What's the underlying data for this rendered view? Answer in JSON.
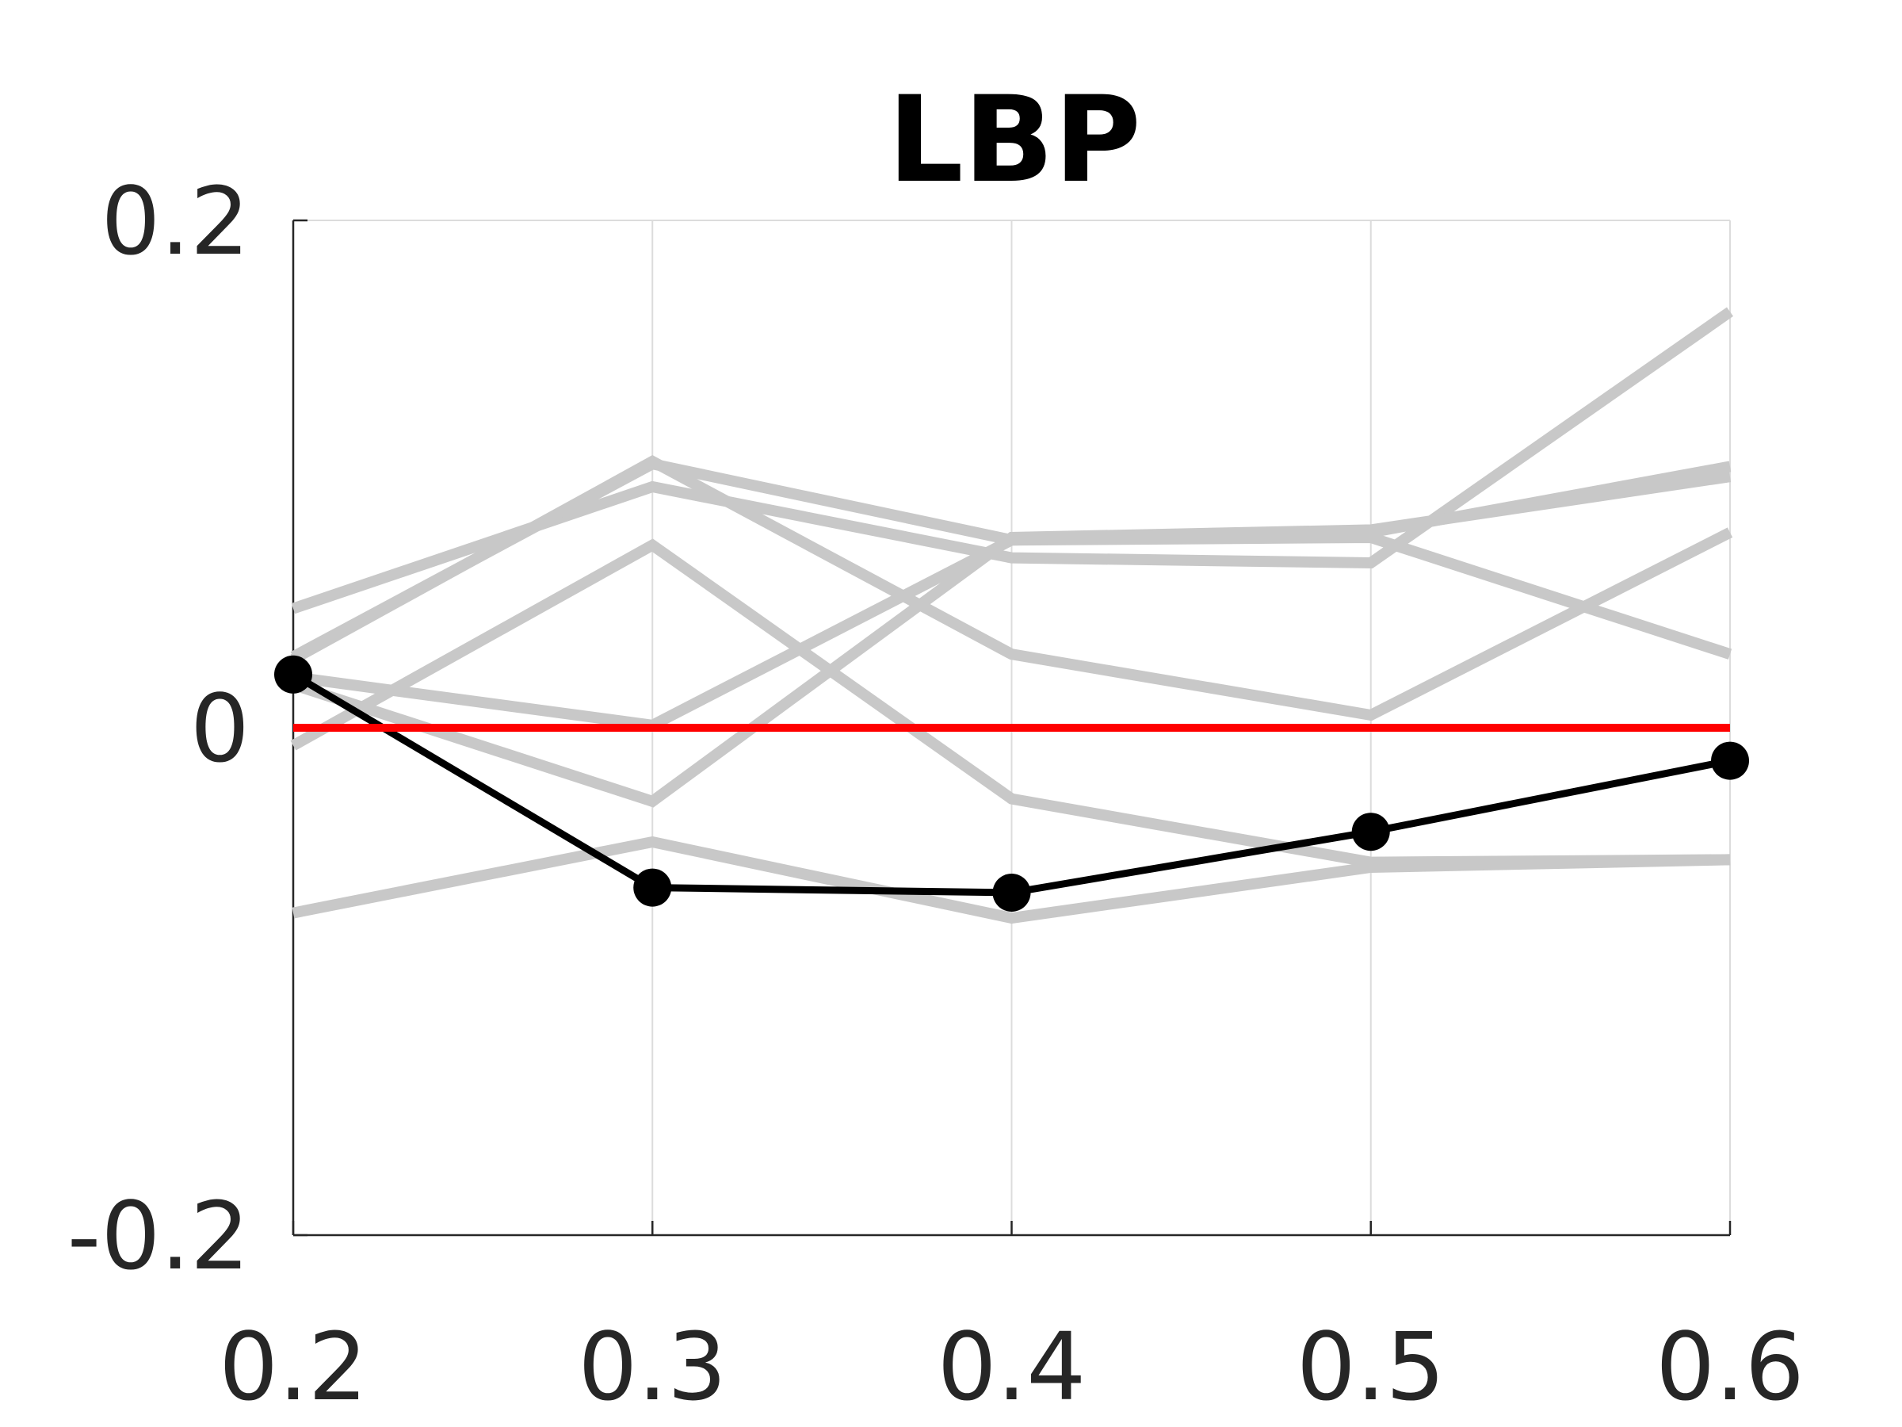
{
  "chart_data": {
    "type": "line",
    "title": "LBP",
    "xlabel": "",
    "ylabel": "",
    "x": [
      0.2,
      0.3,
      0.4,
      0.5,
      0.6
    ],
    "x_tick_labels": [
      "0.2",
      "0.3",
      "0.4",
      "0.5",
      "0.6"
    ],
    "y_tick_labels": [
      "-0.2",
      "0",
      "0.2"
    ],
    "y_ticks": [
      -0.2,
      0,
      0.2
    ],
    "xlim": [
      0.2,
      0.6
    ],
    "ylim": [
      -0.2,
      0.2
    ],
    "grid": "vertical",
    "reference_line": {
      "y": 0,
      "color": "#ff0000"
    },
    "series": [
      {
        "values": [
          0.047,
          0.095,
          0.067,
          0.065,
          0.164
        ],
        "color": "#c8c8c8"
      },
      {
        "values": [
          0.028,
          0.104,
          0.074,
          0.077,
          0.103
        ],
        "color": "#c8c8c8"
      },
      {
        "values": [
          0.027,
          0.105,
          0.029,
          0.005,
          0.077
        ],
        "color": "#c8c8c8"
      },
      {
        "values": [
          0.02,
          0.001,
          0.074,
          0.075,
          0.029
        ],
        "color": "#c8c8c8"
      },
      {
        "values": [
          -0.007,
          0.072,
          -0.028,
          -0.053,
          -0.052
        ],
        "color": "#c8c8c8"
      },
      {
        "values": [
          0.017,
          -0.029,
          0.075,
          0.078,
          0.099
        ],
        "color": "#c8c8c8"
      },
      {
        "values": [
          -0.073,
          -0.045,
          -0.075,
          -0.055,
          -0.052
        ],
        "color": "#c8c8c8"
      },
      {
        "values": [
          0.021,
          -0.063,
          -0.065,
          -0.041,
          -0.013
        ],
        "color": "#000000",
        "markers": true
      }
    ]
  }
}
